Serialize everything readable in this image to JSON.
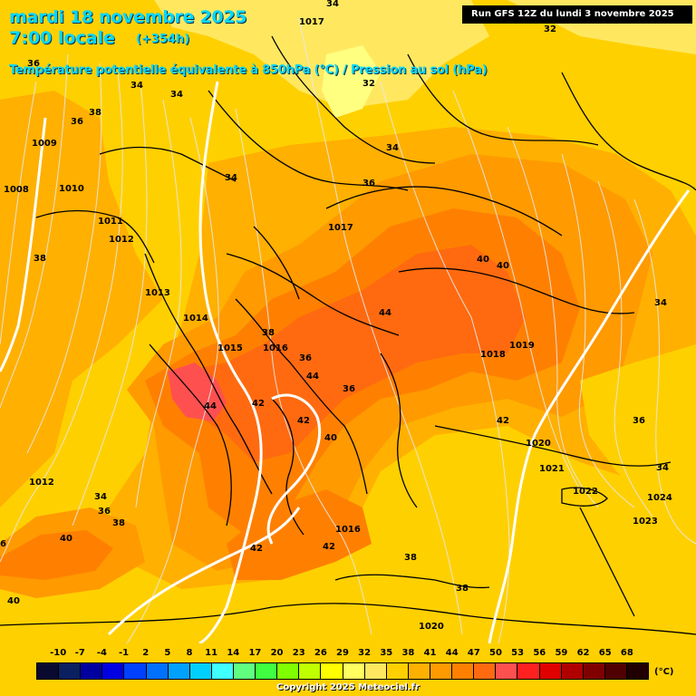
{
  "header": {
    "date": "mardi 18 novembre 2025",
    "time": "7:00 locale",
    "lead": "(+354h)",
    "parameter": "Température potentielle équivalente à 850hPa (°C) / Pression au sol (hPa)",
    "run": "Run GFS 12Z du lundi 3 novembre 2025"
  },
  "colors": {
    "zone_29": "#ffe860",
    "zone_32": "#ffd000",
    "zone_35": "#ffb000",
    "zone_38": "#ff9a00",
    "zone_41": "#ff8000",
    "zone_44": "#ff6a10",
    "zone_47": "#ff5050",
    "border_line": "#000000",
    "isobar_line": "#e8e8e8",
    "theta_e_line": "#ffffff",
    "header_text": "#00d8ff"
  },
  "pressure_labels": [
    {
      "text": "1017"
    },
    {
      "text": "1009"
    },
    {
      "text": "1008"
    },
    {
      "text": "1010"
    },
    {
      "text": "1011"
    },
    {
      "text": "1012"
    },
    {
      "text": "1013"
    },
    {
      "text": "1014"
    },
    {
      "text": "1015"
    },
    {
      "text": "1016"
    },
    {
      "text": "1017"
    },
    {
      "text": "1018"
    },
    {
      "text": "1019"
    },
    {
      "text": "1020"
    },
    {
      "text": "1021"
    },
    {
      "text": "1022"
    },
    {
      "text": "1024"
    },
    {
      "text": "1023"
    },
    {
      "text": "1012"
    },
    {
      "text": "1016"
    },
    {
      "text": "1020"
    },
    {
      "text": "1023"
    }
  ],
  "temperature_labels": [
    {
      "text": "34"
    },
    {
      "text": "32"
    },
    {
      "text": "36"
    },
    {
      "text": "34"
    },
    {
      "text": "34"
    },
    {
      "text": "32"
    },
    {
      "text": "38"
    },
    {
      "text": "36"
    },
    {
      "text": "34"
    },
    {
      "text": "36"
    },
    {
      "text": "38"
    },
    {
      "text": "40"
    },
    {
      "text": "40"
    },
    {
      "text": "44"
    },
    {
      "text": "38"
    },
    {
      "text": "44"
    },
    {
      "text": "42"
    },
    {
      "text": "44"
    },
    {
      "text": "42"
    },
    {
      "text": "40"
    },
    {
      "text": "42"
    },
    {
      "text": "34"
    },
    {
      "text": "36"
    },
    {
      "text": "34"
    },
    {
      "text": "34"
    },
    {
      "text": "36"
    },
    {
      "text": "38"
    },
    {
      "text": "40"
    },
    {
      "text": "42"
    },
    {
      "text": "42"
    },
    {
      "text": "38"
    },
    {
      "text": "38"
    },
    {
      "text": "40"
    },
    {
      "text": "38"
    },
    {
      "text": "36"
    },
    {
      "text": "34"
    },
    {
      "text": "36"
    },
    {
      "text": "6"
    }
  ],
  "scale": {
    "ticks": [
      "-10",
      "-7",
      "-4",
      "-1",
      "2",
      "5",
      "8",
      "11",
      "14",
      "17",
      "20",
      "23",
      "26",
      "29",
      "32",
      "35",
      "38",
      "41",
      "44",
      "47",
      "50",
      "53",
      "56",
      "59",
      "62",
      "65",
      "68"
    ],
    "colors": [
      "#0a0a30",
      "#0a2060",
      "#0000a0",
      "#0000e0",
      "#0040ff",
      "#0070ff",
      "#00a0ff",
      "#00d0ff",
      "#40ffff",
      "#60ff80",
      "#40ff40",
      "#80ff00",
      "#c0ff00",
      "#ffff00",
      "#ffff60",
      "#ffe860",
      "#ffd000",
      "#ffb000",
      "#ff9a00",
      "#ff8000",
      "#ff6a10",
      "#ff5050",
      "#ff2020",
      "#e00000",
      "#b00000",
      "#800000",
      "#500000",
      "#200000"
    ],
    "unit": "(°C)"
  },
  "copyright": "Copyright 2025 Meteociel.fr"
}
